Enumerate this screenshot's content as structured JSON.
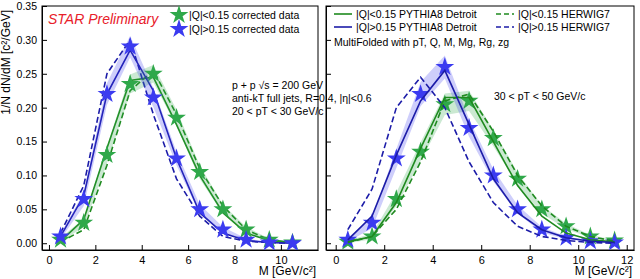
{
  "chart_data": [
    {
      "type": "line",
      "ylabel": "1/N dN/dM [c²/GeV]",
      "xlabel": "M [GeV/c²]",
      "annotations": [
        "STAR Preliminary",
        "p + p  √s = 200 GeV",
        "anti-kT full jets, R=0.4, |η|<0.6",
        "20 < pT < 30 GeV/c"
      ],
      "xlim": [
        -0.3,
        11.6
      ],
      "xticks": [
        0,
        2,
        4,
        6,
        8,
        10
      ],
      "ylim": [
        -0.01,
        0.35
      ],
      "yticks": [
        {
          "value": 0,
          "label": "0.00"
        },
        {
          "value": 0.05,
          "label": "0.05"
        },
        {
          "value": 0.1,
          "label": "0.10"
        },
        {
          "value": 0.15,
          "label": "0.15"
        },
        {
          "value": 0.2,
          "label": "0.20"
        },
        {
          "value": 0.25,
          "label": "0.25"
        },
        {
          "value": 0.3,
          "label": "0.30"
        },
        {
          "value": 0.35,
          "label": "0.35"
        }
      ],
      "legend": "upper right",
      "x": [
        0.5,
        1.5,
        2.5,
        3.5,
        4.5,
        5.5,
        6.5,
        7.5,
        8.5,
        9.5,
        10.5
      ],
      "series": [
        {
          "color": "#1f8a1f",
          "line_style": "solid",
          "values": [
            0.003,
            0.035,
            0.14,
            0.24,
            0.245,
            0.175,
            0.1,
            0.045,
            0.015,
            0.004,
            0.001
          ]
        },
        {
          "color": "#1f8a1f",
          "line_style": "dashed",
          "values": [
            0.002,
            0.02,
            0.115,
            0.225,
            0.255,
            0.19,
            0.11,
            0.055,
            0.02,
            0.005,
            0.001
          ]
        },
        {
          "color": "#1c1ca8",
          "line_style": "solid",
          "values": [
            0.01,
            0.07,
            0.22,
            0.285,
            0.225,
            0.125,
            0.045,
            0.015,
            0.004,
            0.001,
            0.0
          ]
        },
        {
          "color": "#1c1ca8",
          "line_style": "dashed",
          "values": [
            0.015,
            0.085,
            0.25,
            0.3,
            0.19,
            0.095,
            0.04,
            0.01,
            0.003,
            0.001,
            0.0
          ]
        },
        {
          "name": "|Q|<0.15 corrected data",
          "color": "#2fa84a",
          "marker": "star",
          "line_style": "none",
          "values": [
            0.005,
            0.03,
            0.13,
            0.235,
            0.25,
            0.185,
            0.105,
            0.05,
            0.02,
            0.005,
            0.001
          ],
          "errors": [
            0.003,
            0.006,
            0.012,
            0.014,
            0.013,
            0.012,
            0.01,
            0.007,
            0.004,
            0.002,
            0.001
          ]
        },
        {
          "name": "|Q|>0.15 corrected data",
          "color": "#3b3bf0",
          "marker": "star",
          "line_style": "none",
          "values": [
            0.01,
            0.065,
            0.22,
            0.29,
            0.215,
            0.125,
            0.05,
            0.02,
            0.005,
            0.001,
            0.0
          ],
          "errors": [
            0.004,
            0.01,
            0.016,
            0.016,
            0.014,
            0.01,
            0.007,
            0.004,
            0.002,
            0.001,
            0.001
          ]
        }
      ]
    },
    {
      "type": "line",
      "xlabel": "M [GeV/c²]",
      "annotations": [
        "MultiFolded with pT, Q, M, Mg, Rg, zg",
        "30 < pT < 50 GeV/c"
      ],
      "xlim": [
        -0.4,
        12.3
      ],
      "xticks": [
        0,
        2,
        4,
        6,
        8,
        10,
        12
      ],
      "ylim": [
        -0.01,
        0.35
      ],
      "yticks": [
        0,
        0.05,
        0.1,
        0.15,
        0.2,
        0.25,
        0.3,
        0.35
      ],
      "tick_labels": "x",
      "legend": "upper left",
      "x": [
        0.5,
        1.5,
        2.5,
        3.5,
        4.5,
        5.5,
        6.5,
        7.5,
        8.5,
        9.5,
        10.5,
        11.5
      ],
      "series": [
        {
          "color": "#2fa84a",
          "marker": "star",
          "line_style": "none",
          "values": [
            0.002,
            0.01,
            0.065,
            0.135,
            0.205,
            0.21,
            0.155,
            0.095,
            0.05,
            0.025,
            0.01,
            0.004
          ],
          "errors": [
            0.002,
            0.004,
            0.01,
            0.014,
            0.016,
            0.015,
            0.012,
            0.009,
            0.006,
            0.004,
            0.002,
            0.001
          ]
        },
        {
          "color": "#3b3bf0",
          "marker": "star",
          "line_style": "none",
          "values": [
            0.005,
            0.03,
            0.125,
            0.22,
            0.26,
            0.17,
            0.1,
            0.05,
            0.02,
            0.008,
            0.003,
            0.001
          ],
          "errors": [
            0.003,
            0.008,
            0.014,
            0.018,
            0.017,
            0.013,
            0.009,
            0.006,
            0.004,
            0.002,
            0.001,
            0.001
          ]
        },
        {
          "name": "|Q|<0.15 PYTHIA8 Detroit",
          "color": "#1f8a1f",
          "line_style": "solid",
          "values": [
            0.002,
            0.01,
            0.06,
            0.14,
            0.215,
            0.215,
            0.15,
            0.085,
            0.04,
            0.015,
            0.005,
            0.002
          ]
        },
        {
          "name": "|Q|<0.15 HERWIG7",
          "color": "#1f8a1f",
          "line_style": "dashed",
          "values": [
            0.001,
            0.01,
            0.05,
            0.12,
            0.21,
            0.22,
            0.165,
            0.1,
            0.055,
            0.025,
            0.01,
            0.003
          ]
        },
        {
          "name": "|Q|>0.15 PYTHIA8 Detroit",
          "color": "#1c1ca8",
          "line_style": "solid",
          "values": [
            0.005,
            0.04,
            0.13,
            0.21,
            0.255,
            0.175,
            0.095,
            0.045,
            0.02,
            0.008,
            0.003,
            0.001
          ]
        },
        {
          "name": "|Q|>0.15 HERWIG7",
          "color": "#1c1ca8",
          "line_style": "dashed",
          "values": [
            0.02,
            0.08,
            0.2,
            0.245,
            0.2,
            0.12,
            0.06,
            0.025,
            0.01,
            0.004,
            0.001,
            0.0
          ]
        }
      ]
    }
  ]
}
